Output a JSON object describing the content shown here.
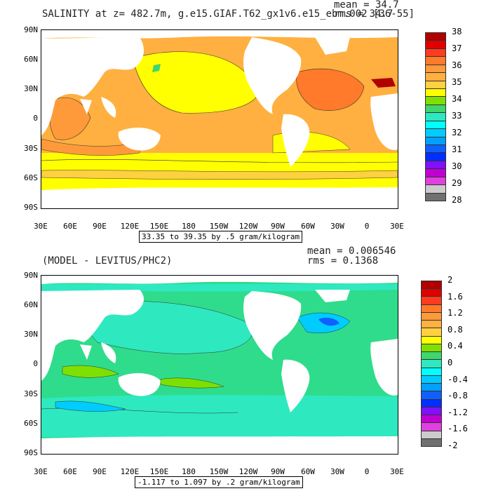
{
  "panels": [
    {
      "title": "SALINITY at z= 482.7m, g.e15.GIAF.T62_gx1v6.e15_ebm.002 [36-55]",
      "mean": "mean = 34.7",
      "rms": "rms = 34.7",
      "caption": "33.35 to 39.35 by .5 gram/kilogram",
      "yticks": [
        "90N",
        "60N",
        "30N",
        "0",
        "30S",
        "60S",
        "90S"
      ],
      "xticks": [
        "30E",
        "60E",
        "90E",
        "120E",
        "150E",
        "180",
        "150W",
        "120W",
        "90W",
        "60W",
        "30W",
        "0",
        "30E"
      ],
      "colorbar": {
        "labels": [
          "38",
          "37",
          "36",
          "35",
          "34",
          "33",
          "32",
          "31",
          "30",
          "29",
          "28"
        ],
        "colors": [
          "#b00000",
          "#e00000",
          "#ff3b1f",
          "#ff7a2a",
          "#ff9a3a",
          "#ffb040",
          "#ffd040",
          "#ffff00",
          "#7ee000",
          "#3fd66b",
          "#2ee8c0",
          "#00ffff",
          "#00ccff",
          "#00a0ff",
          "#1060ff",
          "#0030ff",
          "#8010ff",
          "#c000d0",
          "#e040e0",
          "#cccccc",
          "#707070"
        ]
      },
      "map": {
        "ocean_base": "#ffb040",
        "land": "#ffffff"
      }
    },
    {
      "title": "(MODEL - LEVITUS/PHC2)",
      "mean": "mean = 0.006546",
      "rms": "rms = 0.1368",
      "caption": "-1.117 to 1.097 by .2 gram/kilogram",
      "yticks": [
        "90N",
        "60N",
        "30N",
        "0",
        "30S",
        "60S",
        "90S"
      ],
      "xticks": [
        "30E",
        "60E",
        "90E",
        "120E",
        "150E",
        "180",
        "150W",
        "120W",
        "90W",
        "60W",
        "30W",
        "0",
        "30E"
      ],
      "colorbar": {
        "labels": [
          "2",
          "1.6",
          "1.2",
          "0.8",
          "0.4",
          "0",
          "-0.4",
          "-0.8",
          "-1.2",
          "-1.6",
          "-2"
        ],
        "colors": [
          "#b00000",
          "#e00000",
          "#ff3b1f",
          "#ff7a2a",
          "#ff9a3a",
          "#ffb040",
          "#ffd040",
          "#ffff00",
          "#7ee000",
          "#3fd66b",
          "#2ee8c0",
          "#00ffff",
          "#00ccff",
          "#00a0ff",
          "#1060ff",
          "#0030ff",
          "#8010ff",
          "#c000d0",
          "#e040e0",
          "#cccccc",
          "#707070"
        ]
      },
      "map": {
        "ocean_base": "#2fdc8c",
        "land": "#ffffff"
      }
    }
  ]
}
